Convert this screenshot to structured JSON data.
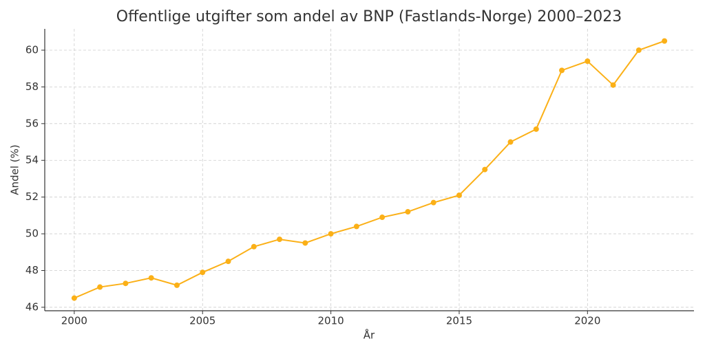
{
  "chart_data": {
    "type": "line",
    "title": "Offentlige utgifter som andel av BNP (Fastlands-Norge) 2000–2023",
    "x_label": "År",
    "y_label": "Andel (%)",
    "x": [
      2000,
      2001,
      2002,
      2003,
      2004,
      2005,
      2006,
      2007,
      2008,
      2009,
      2010,
      2011,
      2012,
      2013,
      2014,
      2015,
      2016,
      2017,
      2018,
      2019,
      2020,
      2021,
      2022,
      2023
    ],
    "series": [
      {
        "color": "#fbb017",
        "values": [
          46.5,
          47.1,
          47.3,
          47.6,
          47.2,
          47.9,
          48.5,
          49.3,
          49.7,
          49.5,
          50.0,
          50.4,
          50.9,
          51.2,
          51.7,
          52.1,
          53.5,
          55.0,
          55.7,
          58.9,
          59.4,
          58.1,
          60.0,
          60.5
        ]
      }
    ],
    "xlim": [
      1998.85,
      2024.15
    ],
    "xticks": [
      2000,
      2005,
      2010,
      2015,
      2020
    ],
    "ylim": [
      45.81,
      61.16
    ],
    "yticks": [
      46,
      48,
      50,
      52,
      54,
      56,
      58,
      60
    ],
    "grid": true
  }
}
